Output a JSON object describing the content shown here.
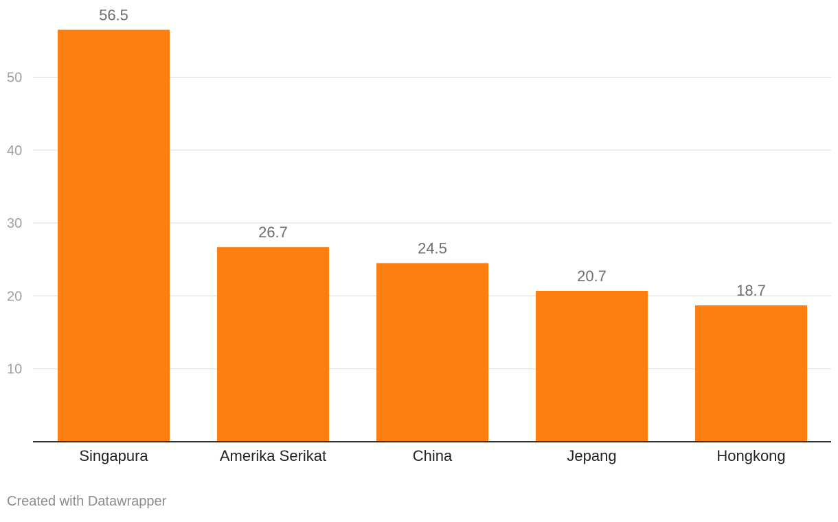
{
  "chart_data": {
    "type": "bar",
    "title": "",
    "xlabel": "",
    "ylabel": "",
    "categories": [
      "Singapura",
      "Amerika Serikat",
      "China",
      "Jepang",
      "Hongkong"
    ],
    "series": [
      {
        "values": [
          56.5,
          26.7,
          24.5,
          20.7,
          18.7
        ],
        "value_labels": [
          "56.5",
          "26.7",
          "24.5",
          "20.7",
          "18.7"
        ]
      }
    ],
    "ylim": [
      0,
      60
    ],
    "yticks": [
      10,
      20,
      30,
      40,
      50
    ],
    "grid": true,
    "legend": "none"
  },
  "colors": {
    "bar": "#fd7f10",
    "grid": "#e0e0e0",
    "axis": "#333333",
    "tick_label": "#a0a0a0",
    "value_label": "#6e6e6e",
    "category_label": "#222222"
  },
  "footer": {
    "credit": "Created with Datawrapper"
  }
}
